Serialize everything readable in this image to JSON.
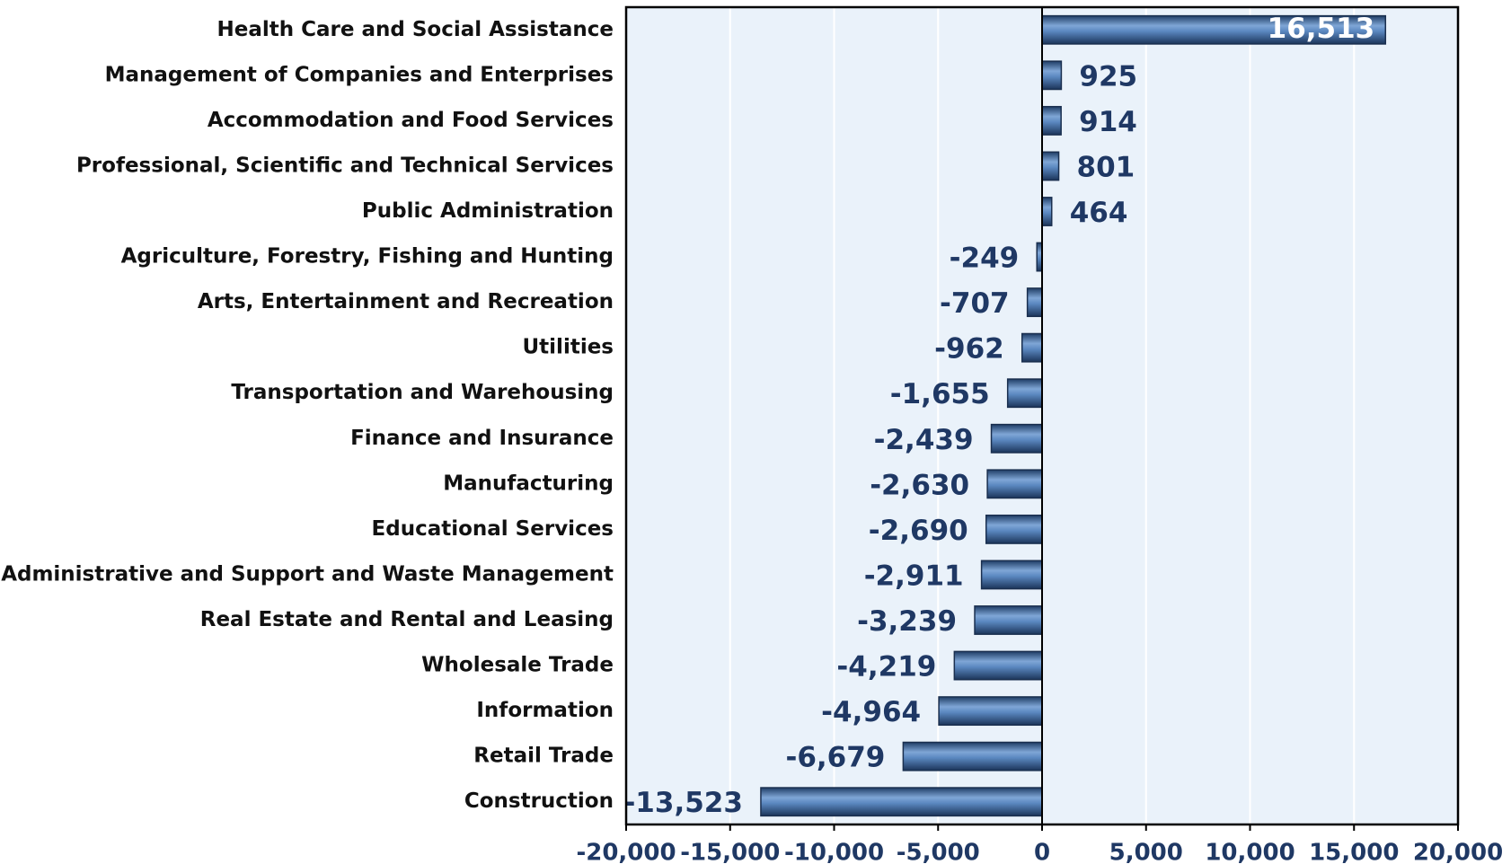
{
  "chart_data": {
    "type": "bar",
    "orientation": "horizontal",
    "categories": [
      "Health Care and Social Assistance",
      "Management of Companies and Enterprises",
      "Accommodation and Food Services",
      "Professional, Scientific and Technical Services",
      "Public Administration",
      "Agriculture, Forestry, Fishing and Hunting",
      "Arts, Entertainment and Recreation",
      "Utilities",
      "Transportation and Warehousing",
      "Finance and Insurance",
      "Manufacturing",
      "Educational Services",
      "Administrative and Support and Waste Management",
      "Real Estate and Rental and Leasing",
      "Wholesale Trade",
      "Information",
      "Retail Trade",
      "Construction"
    ],
    "values": [
      16513,
      925,
      914,
      801,
      464,
      -249,
      -707,
      -962,
      -1655,
      -2439,
      -2630,
      -2690,
      -2911,
      -3239,
      -4219,
      -4964,
      -6679,
      -13523
    ],
    "value_labels": [
      "16,513",
      "925",
      "914",
      "801",
      "464",
      "-249",
      "-707",
      "-962",
      "-1,655",
      "-2,439",
      "-2,630",
      "-2,690",
      "-2,911",
      "-3,239",
      "-4,219",
      "-4,964",
      "-6,679",
      "-13,523"
    ],
    "color": "#4a7ab5",
    "xlim": [
      -20000,
      20000
    ],
    "xticks": [
      {
        "value": -20000,
        "label": "-20,000"
      },
      {
        "value": -15000,
        "label": "-15,000"
      },
      {
        "value": -10000,
        "label": "-10,000"
      },
      {
        "value": -5000,
        "label": "-5,000"
      },
      0,
      {
        "value": 5000,
        "label": "5,000"
      },
      {
        "value": 10000,
        "label": "10,000"
      },
      {
        "value": 15000,
        "label": "15,000"
      },
      {
        "value": 20000,
        "label": "20,000"
      }
    ],
    "grid": true
  }
}
